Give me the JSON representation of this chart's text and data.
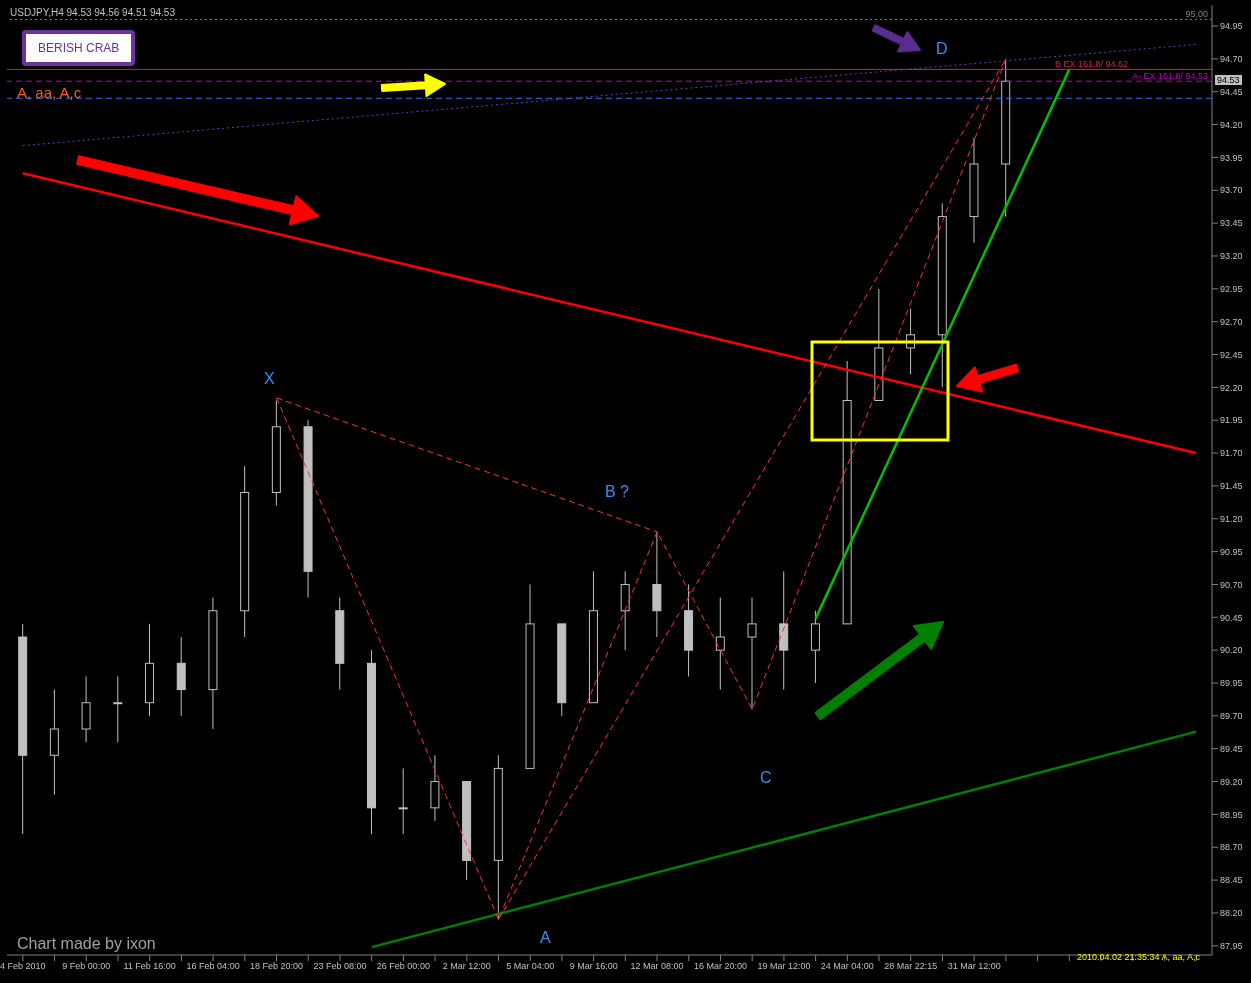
{
  "chart_data": {
    "type": "candlestick",
    "title": "USDJPY,H4  94.53 94.56 94.51 94.53",
    "color": "#c0c0c0",
    "categories": [
      "4 Feb 2010",
      null,
      "9 Feb 00:00",
      null,
      "11 Feb 16:00",
      null,
      "16 Feb 04:00",
      null,
      "18 Feb 20:00",
      null,
      "23 Feb 08:00",
      null,
      "26 Feb 00:00",
      null,
      "2 Mar 12:00",
      null,
      "5 Mar 04:00",
      null,
      "9 Mar 16:00",
      null,
      "12 Mar 08:00",
      null,
      "16 Mar 20:00",
      null,
      "19 Mar 12:00",
      null,
      "24 Mar 04:00",
      null,
      "28 Mar 22:15",
      null,
      "31 Mar 12:00",
      null,
      null,
      null,
      null,
      null,
      null,
      null
    ],
    "ohlc": [
      [
        90.3,
        90.4,
        88.8,
        89.4
      ],
      [
        89.4,
        89.9,
        89.1,
        89.6
      ],
      [
        89.6,
        90.0,
        89.5,
        89.8
      ],
      [
        89.8,
        90.0,
        89.5,
        89.8
      ],
      [
        89.8,
        90.4,
        89.7,
        90.1
      ],
      [
        90.1,
        90.3,
        89.7,
        89.9
      ],
      [
        89.9,
        90.6,
        89.6,
        90.5
      ],
      [
        90.5,
        91.6,
        90.3,
        91.4
      ],
      [
        91.4,
        92.1,
        91.3,
        91.9
      ],
      [
        91.9,
        91.95,
        90.6,
        90.8
      ],
      [
        90.5,
        90.6,
        89.9,
        90.1
      ],
      [
        90.1,
        90.2,
        88.8,
        89.0
      ],
      [
        89.0,
        89.3,
        88.8,
        89.0
      ],
      [
        89.0,
        89.4,
        88.9,
        89.2
      ],
      [
        89.2,
        89.2,
        88.45,
        88.6
      ],
      [
        88.6,
        89.4,
        88.15,
        89.3
      ],
      [
        89.3,
        90.7,
        89.3,
        90.4
      ],
      [
        90.4,
        90.4,
        89.7,
        89.8
      ],
      [
        89.8,
        90.8,
        89.8,
        90.5
      ],
      [
        90.5,
        90.8,
        90.2,
        90.7
      ],
      [
        90.7,
        91.1,
        90.3,
        90.5
      ],
      [
        90.5,
        90.7,
        90.0,
        90.2
      ],
      [
        90.2,
        90.6,
        89.9,
        90.3
      ],
      [
        90.3,
        90.6,
        89.75,
        90.4
      ],
      [
        90.4,
        90.8,
        89.9,
        90.2
      ],
      [
        90.2,
        90.5,
        89.95,
        90.4
      ],
      [
        90.4,
        92.4,
        90.4,
        92.1
      ],
      [
        92.1,
        92.95,
        92.1,
        92.5
      ],
      [
        92.5,
        92.8,
        92.3,
        92.6
      ],
      [
        92.6,
        93.6,
        92.2,
        93.5
      ],
      [
        93.5,
        94.1,
        93.3,
        93.9
      ],
      [
        93.9,
        94.7,
        93.5,
        94.53
      ],
      null,
      null,
      null,
      null,
      null,
      null
    ],
    "series": [
      {
        "type": "line",
        "color": "#ff0000",
        "line_style": "solid",
        "values": [
          93.83,
          null,
          null,
          null,
          null,
          null,
          null,
          null,
          null,
          null,
          null,
          null,
          null,
          null,
          null,
          null,
          null,
          null,
          null,
          null,
          null,
          null,
          null,
          null,
          null,
          null,
          null,
          null,
          null,
          null,
          null,
          null,
          null,
          null,
          null,
          null,
          null,
          91.7
        ]
      },
      {
        "type": "line",
        "color": "#008000",
        "line_style": "solid",
        "values": [
          null,
          null,
          null,
          null,
          null,
          null,
          null,
          null,
          null,
          null,
          null,
          87.94,
          null,
          null,
          null,
          null,
          null,
          null,
          null,
          null,
          null,
          null,
          null,
          null,
          null,
          null,
          null,
          null,
          null,
          null,
          null,
          null,
          null,
          null,
          null,
          null,
          null,
          89.58
        ]
      },
      {
        "type": "line",
        "color": "#ff3030",
        "line_style": "dashed",
        "values": [
          null,
          null,
          null,
          null,
          null,
          null,
          null,
          null,
          92.12,
          null,
          null,
          null,
          null,
          null,
          null,
          88.15,
          null,
          null,
          null,
          null,
          91.1,
          null,
          null,
          89.75,
          null,
          null,
          null,
          null,
          null,
          null,
          null,
          94.7,
          null,
          null,
          null,
          null,
          null,
          null
        ]
      },
      {
        "type": "line",
        "color": "#ff3030",
        "line_style": "dashed",
        "values": [
          null,
          null,
          null,
          null,
          null,
          null,
          null,
          null,
          92.12,
          null,
          null,
          null,
          null,
          null,
          null,
          null,
          null,
          null,
          null,
          null,
          91.1,
          null,
          null,
          null,
          null,
          null,
          null,
          null,
          null,
          null,
          null,
          null,
          null,
          null,
          null,
          null,
          null,
          null
        ]
      },
      {
        "type": "line",
        "color": "#ff3030",
        "line_style": "dashed",
        "values": [
          null,
          null,
          null,
          null,
          null,
          null,
          null,
          null,
          null,
          null,
          null,
          null,
          null,
          null,
          null,
          88.15,
          null,
          null,
          null,
          null,
          null,
          null,
          null,
          null,
          null,
          null,
          null,
          null,
          null,
          null,
          null,
          94.7,
          null,
          null,
          null,
          null,
          null,
          null
        ]
      },
      {
        "type": "line",
        "color": "#6a3cc0",
        "line_style": "dotted",
        "values": [
          94.04,
          null,
          null,
          null,
          null,
          null,
          null,
          null,
          null,
          null,
          null,
          null,
          null,
          null,
          null,
          null,
          null,
          null,
          null,
          null,
          null,
          null,
          null,
          null,
          null,
          null,
          null,
          null,
          null,
          null,
          null,
          null,
          null,
          null,
          null,
          null,
          null,
          94.81
        ]
      },
      {
        "type": "line",
        "color": "#00c000",
        "line_style": "solid",
        "values": [
          null,
          null,
          null,
          null,
          null,
          null,
          null,
          null,
          null,
          null,
          null,
          null,
          null,
          null,
          null,
          null,
          null,
          null,
          null,
          null,
          null,
          null,
          null,
          null,
          null,
          90.44,
          null,
          null,
          null,
          null,
          null,
          null,
          null,
          94.62,
          null,
          null,
          null,
          null
        ]
      }
    ],
    "ylim": [
      87.88,
      95.11
    ],
    "yticks": [
      87.95,
      {
        "value": 88.2,
        "label": "88.20"
      },
      88.45,
      {
        "value": 88.7,
        "label": "88.70"
      },
      88.95,
      {
        "value": 89.2,
        "label": "89.20"
      },
      89.45,
      {
        "value": 89.7,
        "label": "89.70"
      },
      89.95,
      {
        "value": 90.2,
        "label": "90.20"
      },
      90.45,
      {
        "value": 90.7,
        "label": "90.70"
      },
      90.95,
      {
        "value": 91.2,
        "label": "91.20"
      },
      91.45,
      {
        "value": 91.7,
        "label": "91.70"
      },
      91.95,
      {
        "value": 92.2,
        "label": "92.20"
      },
      92.45,
      {
        "value": 92.7,
        "label": "92.70"
      },
      92.95,
      {
        "value": 93.2,
        "label": "93.20"
      },
      93.45,
      {
        "value": 93.7,
        "label": "93.70"
      },
      93.95,
      {
        "value": 94.2,
        "label": "94.20"
      },
      94.45,
      {
        "value": 94.7,
        "label": "94.70"
      },
      94.95
    ],
    "ref_lines": [
      {
        "axis": "y",
        "value": 95.0,
        "label": "95.00",
        "color": "#808080",
        "line_style": "dotted"
      },
      {
        "axis": "y",
        "value": 94.62,
        "label": "B EX 161.8/ 94.62",
        "color": "#d02050",
        "line_style": "solid"
      },
      {
        "axis": "y",
        "value": 94.53,
        "label": "A- EX 161.8/ 94.53",
        "color": "#c000c0",
        "line_style": "dashed"
      },
      {
        "axis": "y",
        "value": 94.4,
        "color": "#3070ff",
        "line_style": "dashed"
      }
    ],
    "annotations": [
      "BERISH CRAB",
      "A, aa, A,c",
      "X",
      "A",
      "B ?",
      "C",
      "D",
      "Chart made by  ixon",
      "2010.04.02 21:35:34  A, aa, A,c",
      "94.53"
    ]
  }
}
